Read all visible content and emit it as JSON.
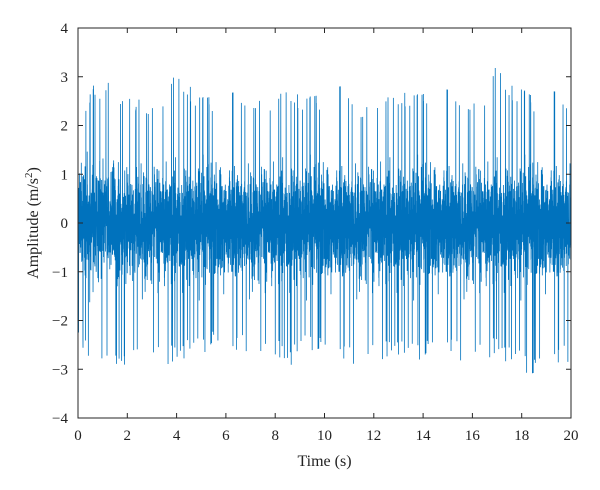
{
  "chart_data": {
    "type": "line",
    "title": "",
    "xlabel": "Time (s)",
    "ylabel_main": "Amplitude (m/s",
    "ylabel_sup": "2",
    "ylabel_tail": ")",
    "xlim": [
      0,
      20
    ],
    "ylim": [
      -4,
      4
    ],
    "xticks": [
      0,
      2,
      4,
      6,
      8,
      10,
      12,
      14,
      16,
      18,
      20
    ],
    "yticks": [
      -4,
      -3,
      -2,
      -1,
      0,
      1,
      2,
      3,
      4
    ],
    "grid": false,
    "legend": "none",
    "series": [
      {
        "color": "#0072BD",
        "description_stats": {
          "mean": 0,
          "envelope_max": 3.3,
          "envelope_min": -3.3
        },
        "x": [
          0.0,
          0.5,
          1.0,
          1.5,
          2.0,
          2.5,
          3.0,
          3.5,
          4.0,
          4.5,
          5.0,
          5.5,
          6.0,
          6.5,
          7.0,
          7.5,
          8.0,
          8.5,
          9.0,
          9.5,
          10.0,
          10.5,
          11.0,
          11.5,
          12.0,
          12.5,
          13.0,
          13.5,
          14.0,
          14.5,
          15.0,
          15.5,
          16.0,
          16.5,
          17.0,
          17.5,
          18.0,
          18.5,
          19.0,
          19.5,
          20.0
        ],
        "y_peak": [
          2.4,
          2.8,
          3.0,
          2.9,
          2.6,
          2.6,
          2.6,
          2.8,
          3.1,
          2.9,
          2.7,
          2.6,
          2.8,
          2.7,
          2.7,
          2.8,
          2.6,
          2.8,
          2.7,
          2.7,
          2.6,
          2.9,
          2.8,
          2.5,
          2.8,
          2.6,
          2.7,
          2.8,
          2.7,
          3.0,
          2.8,
          2.7,
          2.7,
          2.8,
          3.3,
          2.9,
          2.9,
          2.6,
          2.9,
          2.7,
          2.6
        ],
        "y_trough": [
          -2.5,
          -2.8,
          -2.9,
          -2.9,
          -3.0,
          -2.9,
          -2.8,
          -2.9,
          -2.9,
          -2.7,
          -2.8,
          -2.6,
          -2.9,
          -2.7,
          -2.7,
          -2.8,
          -2.7,
          -3.0,
          -2.7,
          -2.7,
          -2.8,
          -2.8,
          -3.0,
          -2.9,
          -2.8,
          -2.8,
          -2.7,
          -2.9,
          -2.9,
          -2.7,
          -2.7,
          -2.9,
          -2.8,
          -2.8,
          -2.7,
          -2.9,
          -3.1,
          -3.3,
          -2.9,
          -3.0,
          -2.9
        ]
      }
    ]
  }
}
